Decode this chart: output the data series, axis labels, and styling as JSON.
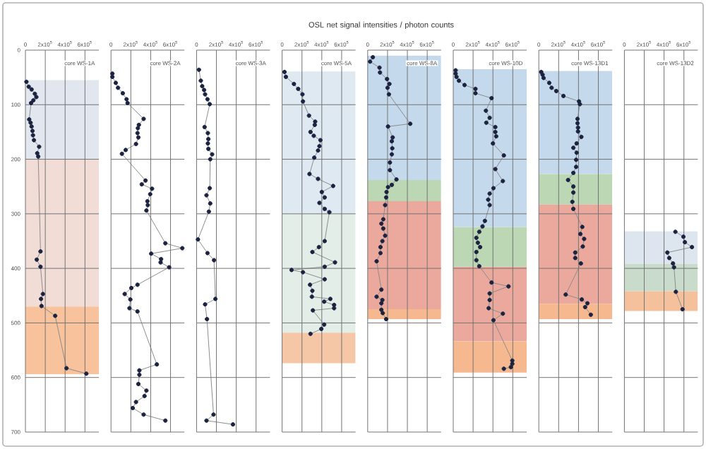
{
  "chart_data": [
    {
      "type": "line",
      "title": "core WS-1A",
      "annotations": [
        "OSL net signal intensities / photon counts"
      ],
      "xlim": [
        0,
        740000
      ],
      "ylim": [
        700,
        0
      ],
      "xticks": [
        0,
        {
          "value": 200000,
          "label": "2x10$^{5}$"
        },
        {
          "value": 400000,
          "label": "4x10$^{5}$"
        },
        {
          "value": 600000,
          "label": "6x10$^{5}$"
        }
      ],
      "yticks": [
        0,
        100,
        200,
        300,
        400,
        500,
        600,
        700
      ],
      "grid": true,
      "marker": "circle",
      "line_style": "solid",
      "bands": [
        {
          "axis": "y",
          "from": 55,
          "to": 200,
          "color": "#e2e6ef"
        },
        {
          "axis": "y",
          "from": 200,
          "to": 470,
          "color": "#f2dcd6"
        },
        {
          "axis": "y",
          "from": 470,
          "to": 594,
          "color": "#f7c29c"
        }
      ],
      "series": [
        {
          "color": "#1c2340",
          "x": [
            10000,
            33000,
            62000,
            95000,
            110000,
            80000,
            57000,
            38000,
            52000,
            62000,
            71000,
            76000,
            86000,
            138000,
            119000,
            129000,
            152000,
            114000,
            152000,
            176000,
            157000,
            162000,
            300000,
            414000,
            614000
          ],
          "values": [
            58,
            67,
            72,
            80,
            86,
            92,
            97,
            127,
            133,
            140,
            148,
            156,
            165,
            177,
            189,
            195,
            369,
            384,
            397,
            447,
            456,
            469,
            487,
            583,
            593
          ]
        }
      ]
    },
    {
      "type": "line",
      "title": "core WS-2A",
      "xlim": [
        0,
        740000
      ],
      "ylim": [
        700,
        0
      ],
      "xticks": [
        0,
        {
          "value": 200000,
          "label": "2x10$^{5}$"
        },
        {
          "value": 400000,
          "label": "4x10$^{5}$"
        },
        {
          "value": 600000,
          "label": "6x10$^{5}$"
        }
      ],
      "yticks": [
        0,
        100,
        200,
        300,
        400,
        500,
        600,
        700
      ],
      "tick_labels": "x",
      "grid": true,
      "marker": "circle",
      "line_style": "solid",
      "series": [
        {
          "color": "#1c2340",
          "x": [
            14000,
            14000,
            48000,
            71000,
            119000,
            157000,
            167000,
            329000,
            281000,
            271000,
            267000,
            276000,
            252000,
            148000,
            110000,
            348000,
            310000,
            414000,
            395000,
            367000,
            371000,
            357000,
            548000,
            719000,
            405000,
            505000,
            500000,
            586000,
            267000,
            205000,
            138000,
            195000,
            186000,
            267000,
            462000,
            286000,
            286000,
            276000,
            357000,
            338000,
            252000,
            219000,
            329000,
            548000
          ],
          "values": [
            43,
            49,
            60,
            69,
            79,
            90,
            97,
            126,
            137,
            143,
            152,
            160,
            172,
            183,
            190,
            239,
            246,
            254,
            264,
            277,
            284,
            294,
            354,
            363,
            373,
            383,
            389,
            398,
            430,
            436,
            447,
            457,
            473,
            479,
            576,
            587,
            595,
            612,
            624,
            634,
            645,
            656,
            668,
            679
          ]
        }
      ]
    },
    {
      "type": "line",
      "title": "core WS-3A",
      "xlim": [
        0,
        740000
      ],
      "ylim": [
        700,
        0
      ],
      "xticks": [
        0,
        {
          "value": 200000,
          "label": "2x10$^{5}$"
        },
        {
          "value": 400000,
          "label": "4x10$^{5}$"
        },
        {
          "value": 600000,
          "label": "6x10$^{5}$"
        }
      ],
      "yticks": [
        0,
        100,
        200,
        300,
        400,
        500,
        600,
        700
      ],
      "tick_labels": "x",
      "grid": true,
      "marker": "circle",
      "line_style": "solid",
      "series": [
        {
          "color": "#1c2340",
          "x": [
            24000,
            43000,
            57000,
            76000,
            86000,
            110000,
            133000,
            81000,
            114000,
            119000,
            114000,
            119000,
            157000,
            138000,
            133000,
            100000,
            138000,
            124000,
            14000,
            110000,
            176000,
            190000,
            86000,
            105000,
            171000,
            100000,
            367000
          ],
          "values": [
            36,
            56,
            66,
            73,
            81,
            90,
            99,
            141,
            152,
            163,
            171,
            181,
            191,
            200,
            253,
            266,
            281,
            296,
            347,
            372,
            385,
            456,
            466,
            493,
            668,
            679,
            686
          ]
        }
      ]
    },
    {
      "type": "line",
      "title": "core WS-5A",
      "xlim": [
        0,
        740000
      ],
      "ylim": [
        700,
        0
      ],
      "xticks": [
        0,
        {
          "value": 200000,
          "label": "2x10$^{5}$"
        },
        {
          "value": 400000,
          "label": "4x10$^{5}$"
        },
        {
          "value": 600000,
          "label": "6x10$^{5}$"
        }
      ],
      "yticks": [
        0,
        100,
        200,
        300,
        400,
        500,
        600,
        700
      ],
      "tick_labels": "x",
      "grid": true,
      "marker": "circle",
      "line_style": "solid",
      "bands": [
        {
          "axis": "y",
          "from": 39,
          "to": 300,
          "color": "#dfe9f1"
        },
        {
          "axis": "y",
          "from": 300,
          "to": 518,
          "color": "#e2eee7"
        },
        {
          "axis": "y",
          "from": 518,
          "to": 574,
          "color": "#f6c7a6"
        }
      ],
      "series": [
        {
          "color": "#1c2340",
          "x": [
            24000,
            38000,
            119000,
            162000,
            205000,
            210000,
            271000,
            333000,
            329000,
            286000,
            319000,
            386000,
            376000,
            362000,
            324000,
            276000,
            362000,
            514000,
            400000,
            429000,
            376000,
            429000,
            476000,
            429000,
            371000,
            305000,
            533000,
            429000,
            95000,
            210000,
            429000,
            281000,
            305000,
            300000,
            486000,
            424000,
            524000,
            524000,
            310000,
            424000,
            395000,
            286000
          ],
          "values": [
            40,
            49,
            62,
            71,
            81,
            94,
            120,
            131,
            137,
            150,
            157,
            165,
            176,
            184,
            197,
            227,
            236,
            249,
            260,
            270,
            280,
            291,
            297,
            350,
            361,
            370,
            389,
            397,
            403,
            407,
            420,
            430,
            441,
            452,
            456,
            461,
            467,
            473,
            477,
            503,
            511,
            520
          ]
        }
      ]
    },
    {
      "type": "line",
      "title": "core WS-8A",
      "xlim": [
        0,
        740000
      ],
      "ylim": [
        700,
        0
      ],
      "xticks": [
        0,
        {
          "value": 200000,
          "label": "2x10$^{5}$"
        },
        {
          "value": 400000,
          "label": "4x10$^{5}$"
        },
        {
          "value": 600000,
          "label": "6x10$^{5}$"
        }
      ],
      "yticks": [
        0,
        100,
        200,
        300,
        400,
        500,
        600,
        700
      ],
      "tick_labels": "x",
      "grid": true,
      "marker": "circle",
      "line_style": "solid",
      "bands": [
        {
          "axis": "y",
          "from": 10,
          "to": 238,
          "color": "#c5d9ec"
        },
        {
          "axis": "y",
          "from": 238,
          "to": 277,
          "color": "#bcd7b3"
        },
        {
          "axis": "y",
          "from": 277,
          "to": 475,
          "color": "#eba99d"
        },
        {
          "axis": "y",
          "from": 475,
          "to": 493,
          "color": "#f6b98f"
        }
      ],
      "series": [
        {
          "color": "#1c2340",
          "x": [
            52000,
            24000,
            119000,
            124000,
            195000,
            219000,
            200000,
            214000,
            429000,
            205000,
            252000,
            243000,
            248000,
            243000,
            224000,
            224000,
            290000,
            243000,
            205000,
            190000,
            186000,
            176000,
            157000,
            138000,
            157000,
            176000,
            148000,
            129000,
            129000,
            90000,
            138000,
            90000,
            148000,
            138000,
            138000,
            152000,
            186000
          ],
          "values": [
            13,
            21,
            32,
            41,
            53,
            62,
            69,
            81,
            135,
            140,
            160,
            167,
            180,
            191,
            206,
            220,
            237,
            247,
            251,
            260,
            270,
            284,
            310,
            318,
            327,
            340,
            350,
            361,
            372,
            387,
            439,
            452,
            458,
            464,
            476,
            482,
            493
          ]
        }
      ]
    },
    {
      "type": "line",
      "title": "core WS-10D",
      "xlim": [
        0,
        740000
      ],
      "ylim": [
        700,
        0
      ],
      "xticks": [
        0,
        {
          "value": 200000,
          "label": "2x10$^{5}$"
        },
        {
          "value": 400000,
          "label": "4x10$^{5}$"
        },
        {
          "value": 600000,
          "label": "6x10$^{5}$"
        }
      ],
      "yticks": [
        0,
        100,
        200,
        300,
        400,
        500,
        600,
        700
      ],
      "tick_labels": "x",
      "grid": true,
      "marker": "circle",
      "line_style": "solid",
      "bands": [
        {
          "axis": "y",
          "from": 35,
          "to": 324,
          "color": "#c5d9ec"
        },
        {
          "axis": "y",
          "from": 324,
          "to": 397,
          "color": "#bcd7b3"
        },
        {
          "axis": "y",
          "from": 397,
          "to": 534,
          "color": "#eba99d"
        },
        {
          "axis": "y",
          "from": 534,
          "to": 591,
          "color": "#f6b98f"
        }
      ],
      "series": [
        {
          "color": "#1c2340",
          "x": [
            24000,
            24000,
            33000,
            57000,
            114000,
            224000,
            224000,
            386000,
            329000,
            367000,
            333000,
            424000,
            424000,
            433000,
            400000,
            510000,
            424000,
            500000,
            405000,
            367000,
            352000,
            367000,
            319000,
            295000,
            262000,
            233000,
            248000,
            271000,
            233000,
            233000,
            262000,
            386000,
            557000,
            367000,
            367000,
            357000,
            500000,
            405000,
            595000,
            595000,
            581000,
            510000
          ],
          "values": [
            37,
            43,
            49,
            56,
            64,
            71,
            79,
            88,
            111,
            124,
            133,
            141,
            150,
            158,
            171,
            193,
            218,
            240,
            253,
            263,
            274,
            284,
            313,
            323,
            333,
            344,
            353,
            361,
            370,
            385,
            396,
            426,
            433,
            446,
            458,
            473,
            483,
            495,
            569,
            575,
            581,
            584
          ]
        }
      ]
    },
    {
      "type": "line",
      "title": "core WS-13D1",
      "xlim": [
        0,
        740000
      ],
      "ylim": [
        700,
        0
      ],
      "xticks": [
        0,
        {
          "value": 200000,
          "label": "2x10$^{5}$"
        },
        {
          "value": 400000,
          "label": "4x10$^{5}$"
        },
        {
          "value": 600000,
          "label": "6x10$^{5}$"
        }
      ],
      "yticks": [
        0,
        100,
        200,
        300,
        400,
        500,
        600,
        700
      ],
      "tick_labels": "x",
      "grid": true,
      "marker": "circle",
      "line_style": "solid",
      "bands": [
        {
          "axis": "y",
          "from": 38,
          "to": 227,
          "color": "#c5d9ec"
        },
        {
          "axis": "y",
          "from": 227,
          "to": 283,
          "color": "#bcd7b3"
        },
        {
          "axis": "y",
          "from": 283,
          "to": 465,
          "color": "#eba99d"
        },
        {
          "axis": "y",
          "from": 465,
          "to": 493,
          "color": "#f6b98f"
        }
      ],
      "series": [
        {
          "color": "#1c2340",
          "x": [
            24000,
            38000,
            48000,
            105000,
            129000,
            176000,
            248000,
            405000,
            414000,
            390000,
            390000,
            395000,
            395000,
            429000,
            381000,
            348000,
            381000,
            376000,
            376000,
            348000,
            295000,
            348000,
            348000,
            338000,
            348000,
            438000,
            419000,
            457000,
            443000,
            367000,
            367000,
            424000,
            271000,
            433000,
            490000,
            467000,
            524000
          ],
          "values": [
            40,
            45,
            51,
            60,
            69,
            75,
            84,
            94,
            99,
            126,
            134,
            142,
            149,
            159,
            171,
            179,
            188,
            201,
            214,
            225,
            238,
            250,
            261,
            278,
            291,
            324,
            337,
            346,
            360,
            371,
            381,
            391,
            448,
            457,
            464,
            471,
            485
          ]
        }
      ]
    },
    {
      "type": "line",
      "title": "core WS-13D2",
      "xlim": [
        0,
        740000
      ],
      "ylim": [
        700,
        0
      ],
      "xticks": [
        0,
        {
          "value": 200000,
          "label": "2x10$^{5}$"
        },
        {
          "value": 400000,
          "label": "4x10$^{5}$"
        },
        {
          "value": 600000,
          "label": "6x10$^{5}$"
        }
      ],
      "yticks": [
        0,
        100,
        200,
        300,
        400,
        500,
        600,
        700
      ],
      "tick_labels": "x",
      "grid": true,
      "marker": "circle",
      "line_style": "solid",
      "bands": [
        {
          "axis": "y",
          "from": 332,
          "to": 392,
          "color": "#dde6ef"
        },
        {
          "axis": "y",
          "from": 392,
          "to": 442,
          "color": "#c9dccb"
        },
        {
          "axis": "y",
          "from": 442,
          "to": 478,
          "color": "#f5c09c"
        }
      ],
      "series": [
        {
          "color": "#1c2340",
          "x": [
            514000,
            595000,
            610000,
            681000,
            433000,
            452000,
            490000,
            500000,
            519000,
            586000
          ],
          "values": [
            333,
            342,
            352,
            361,
            371,
            381,
            391,
            398,
            443,
            475
          ]
        }
      ]
    }
  ]
}
